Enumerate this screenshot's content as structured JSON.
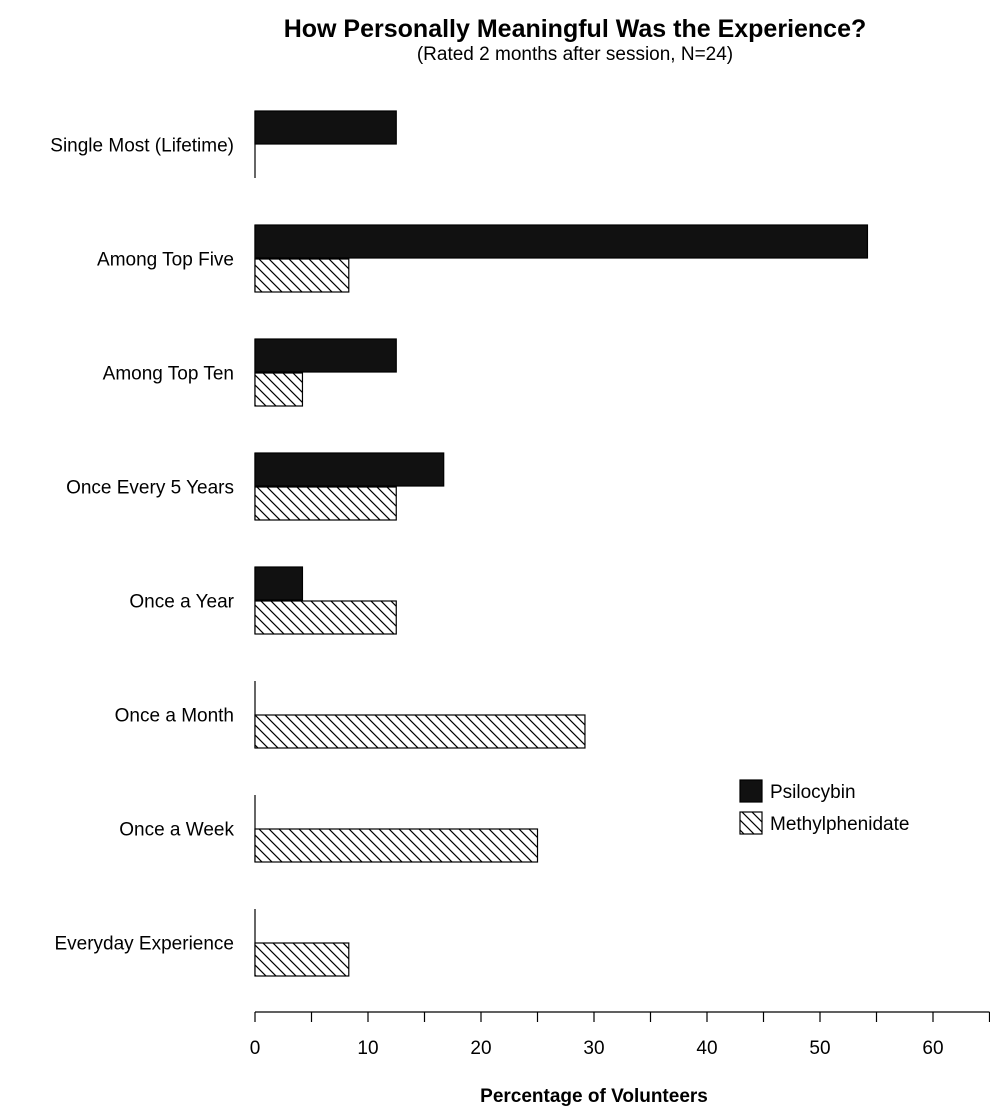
{
  "chart_data": {
    "type": "bar",
    "orientation": "horizontal",
    "title": "How Personally Meaningful Was the Experience?",
    "subtitle": "(Rated 2 months after session, N=24)",
    "xlabel": "Percentage of Volunteers",
    "ylabel": "",
    "xlim": [
      0,
      65
    ],
    "xticks": [
      0,
      10,
      20,
      30,
      40,
      50,
      60
    ],
    "grid": false,
    "legend_position": "right",
    "categories": [
      "Single Most (Lifetime)",
      "Among Top Five",
      "Among Top Ten",
      "Once Every 5 Years",
      "Once a Year",
      "Once a Month",
      "Once a Week",
      "Everyday Experience"
    ],
    "series": [
      {
        "name": "Psilocybin",
        "fill": "solid",
        "color": "#111111",
        "values": [
          12.5,
          54.2,
          12.5,
          16.7,
          4.2,
          0,
          0,
          0
        ]
      },
      {
        "name": "Methylphenidate",
        "fill": "hatched",
        "color": "#ffffff",
        "values": [
          0,
          8.3,
          4.2,
          12.5,
          12.5,
          29.2,
          25.0,
          8.3
        ]
      }
    ]
  }
}
